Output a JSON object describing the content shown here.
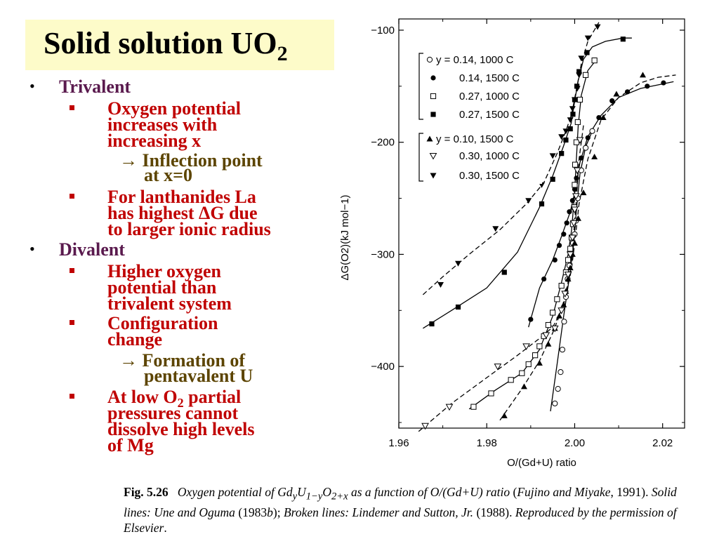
{
  "slide": {
    "title": "Solid solution UO",
    "title_sub": "2"
  },
  "bullets": {
    "trivalent": "Trivalent",
    "oxy_1": "Oxygen potential",
    "oxy_2": "increases with",
    "oxy_3": "increasing x",
    "arrow_glyph": "→",
    "inflection_1": "Inflection point",
    "inflection_2": "at x=0",
    "lan_1": "For lanthanides La",
    "lan_2": "has highest  ΔG due",
    "lan_3": "to larger ionic radius",
    "divalent": "Divalent",
    "higher_1": "Higher oxygen",
    "higher_2": "potential than",
    "higher_3": "trivalent system",
    "config_1": "Configuration",
    "config_2": "change",
    "penta_1": "Formation of",
    "penta_2": "pentavalent U",
    "low_1": "At low O",
    "low_1_sub": "2",
    "low_1_end": " partial",
    "low_2": "pressures cannot",
    "low_3": "dissolve high levels",
    "low_4": "of Mg"
  },
  "chart_data": {
    "type": "scatter",
    "xlabel": "O/(Gd+U) ratio",
    "ylabel": "ΔG(O2)(kJ mol−1)",
    "xlim": [
      1.96,
      2.025
    ],
    "ylim": [
      -455,
      -90
    ],
    "xticks": [
      1.96,
      1.98,
      2.0,
      2.02
    ],
    "xtick_labels": [
      "1.96",
      "1.98",
      "2.00",
      "2.02"
    ],
    "yticks": [
      -100,
      -200,
      -300,
      -400
    ],
    "ytick_labels": [
      "−100",
      "−200",
      "−300",
      "−400"
    ],
    "legend_position": "top-left",
    "legend": [
      "y = 0.14, 1000 C",
      "0.14, 1500 C",
      "0.27, 1000 C",
      "0.27, 1500 C",
      "y = 0.10, 1500 C",
      "0.30, 1000 C",
      "0.30, 1500 C"
    ],
    "series": [
      {
        "marker": "circle-open",
        "x": [
          1.9955,
          1.9962,
          1.9968,
          1.9972,
          1.9976,
          1.998,
          1.9984,
          1.9988,
          1.9992,
          1.9996,
          2.0,
          2.0003,
          2.0007,
          2.0015,
          2.0025,
          2.004
        ],
        "y": [
          -433,
          -420,
          -405,
          -385,
          -360,
          -338,
          -322,
          -310,
          -300,
          -290,
          -282,
          -270,
          -250,
          -225,
          -205,
          -190
        ]
      },
      {
        "marker": "circle-filled",
        "x": [
          1.99,
          1.993,
          1.9955,
          1.9965,
          1.9975,
          1.9982,
          1.9988,
          1.9995,
          2.0,
          2.0004,
          2.0015,
          2.003,
          2.0055,
          2.0085,
          2.012,
          2.0165,
          2.0202
        ],
        "y": [
          -358,
          -322,
          -305,
          -292,
          -282,
          -272,
          -262,
          -252,
          -242,
          -232,
          -214,
          -196,
          -178,
          -163,
          -155,
          -150,
          -147
        ]
      },
      {
        "marker": "square-open",
        "x": [
          1.977,
          1.981,
          1.9855,
          1.988,
          1.9895,
          1.991,
          1.992,
          1.993,
          1.994,
          1.995,
          1.996,
          1.997,
          1.998,
          1.9985,
          1.999,
          1.9993,
          1.9996,
          1.9999,
          2.0,
          2.0001,
          2.0004,
          2.0007,
          2.0012,
          2.0025,
          2.0045
        ],
        "y": [
          -436,
          -424,
          -412,
          -406,
          -398,
          -390,
          -382,
          -373,
          -363,
          -352,
          -340,
          -328,
          -316,
          -305,
          -295,
          -285,
          -273,
          -258,
          -238,
          -220,
          -200,
          -182,
          -162,
          -140,
          -127
        ]
      },
      {
        "marker": "square-filled",
        "x": [
          1.9675,
          1.9735,
          1.984,
          1.9925,
          1.995,
          1.997,
          1.998,
          1.999,
          1.9996,
          2.0,
          2.0005,
          2.001,
          2.0028,
          2.011
        ],
        "y": [
          -362,
          -347,
          -316,
          -255,
          -233,
          -210,
          -198,
          -188,
          -175,
          -162,
          -150,
          -137,
          -120,
          -108
        ]
      },
      {
        "marker": "triangle-filled",
        "x": [
          1.984,
          1.9885,
          1.992,
          1.994,
          1.9955,
          1.9965,
          1.9975,
          1.998,
          1.9985,
          1.999,
          1.9995,
          2.0,
          2.0008,
          2.002,
          2.0045,
          2.0065,
          2.0095,
          2.0155
        ],
        "y": [
          -444,
          -418,
          -397,
          -380,
          -366,
          -355,
          -345,
          -333,
          -322,
          -312,
          -300,
          -290,
          -268,
          -245,
          -213,
          -178,
          -157,
          -140
        ]
      },
      {
        "marker": "triangle-open",
        "x": [
          1.966,
          1.9715,
          1.9825,
          1.989,
          1.9935,
          1.9955,
          1.997,
          1.9978,
          1.9985,
          1.999,
          1.9995,
          1.9998,
          2.0,
          2.0003,
          2.0006,
          2.0012
        ],
        "y": [
          -453,
          -436,
          -400,
          -382,
          -372,
          -366,
          -350,
          -335,
          -318,
          -300,
          -285,
          -272,
          -260,
          -248,
          -225,
          -198
        ]
      },
      {
        "marker": "triangle-down-filled",
        "x": [
          1.9695,
          1.9735,
          1.982,
          1.9895,
          1.9925,
          1.995,
          1.997,
          1.998,
          1.999,
          1.9995,
          2.0,
          2.0006,
          2.001,
          2.0015,
          2.003,
          2.0052
        ],
        "y": [
          -327,
          -308,
          -277,
          -252,
          -238,
          -212,
          -195,
          -190,
          -180,
          -170,
          -162,
          -152,
          -140,
          -125,
          -107,
          -97
        ]
      }
    ],
    "curves": [
      {
        "style": "solid",
        "x": [
          1.9945,
          1.996,
          1.9975,
          1.999,
          1.9998,
          2.0003,
          2.0012,
          2.0025,
          2.004
        ],
        "y": [
          -440,
          -398,
          -355,
          -315,
          -290,
          -265,
          -228,
          -204,
          -190
        ]
      },
      {
        "style": "solid",
        "x": [
          1.9895,
          1.992,
          1.995,
          1.997,
          1.999,
          2.0,
          2.0012,
          2.003,
          2.006,
          2.01,
          2.015,
          2.02,
          2.0225
        ],
        "y": [
          -365,
          -330,
          -305,
          -284,
          -262,
          -245,
          -218,
          -195,
          -176,
          -160,
          -152,
          -148,
          -146
        ]
      },
      {
        "style": "solid",
        "x": [
          1.976,
          1.982,
          1.988,
          1.992,
          1.995,
          1.997,
          1.9985,
          1.9993,
          1.9999,
          2.0003,
          2.0008,
          2.0015,
          2.003,
          2.005
        ],
        "y": [
          -438,
          -421,
          -406,
          -385,
          -355,
          -325,
          -300,
          -278,
          -250,
          -222,
          -185,
          -158,
          -136,
          -126
        ]
      },
      {
        "style": "solid",
        "x": [
          1.9655,
          1.972,
          1.98,
          1.987,
          1.992,
          1.995,
          1.9975,
          1.9992,
          2.0,
          2.0008,
          2.002,
          2.004,
          2.007,
          2.011,
          2.013
        ],
        "y": [
          -366,
          -350,
          -330,
          -298,
          -258,
          -230,
          -203,
          -183,
          -163,
          -145,
          -126,
          -115,
          -110,
          -107,
          -107
        ]
      },
      {
        "style": "dashed",
        "x": [
          1.983,
          1.988,
          1.992,
          1.995,
          1.9975,
          1.9992,
          2.0,
          2.001,
          2.003,
          2.006,
          2.01,
          2.015,
          2.019,
          2.023
        ],
        "y": [
          -448,
          -420,
          -395,
          -370,
          -345,
          -315,
          -290,
          -255,
          -215,
          -180,
          -160,
          -147,
          -142,
          -140
        ]
      },
      {
        "style": "dashed",
        "x": [
          1.9645,
          1.972,
          1.98,
          1.987,
          1.992,
          1.995,
          1.997,
          1.9985,
          1.9995,
          2.0,
          2.0005,
          2.001,
          2.002
        ],
        "y": [
          -458,
          -433,
          -410,
          -390,
          -375,
          -365,
          -350,
          -325,
          -295,
          -270,
          -245,
          -215,
          -185
        ]
      },
      {
        "style": "dashed",
        "x": [
          1.9655,
          1.97,
          1.976,
          1.983,
          1.989,
          1.993,
          1.996,
          1.998,
          1.9993,
          2.0003,
          2.0015,
          2.003,
          2.0055
        ],
        "y": [
          -336,
          -320,
          -300,
          -278,
          -255,
          -236,
          -210,
          -190,
          -175,
          -155,
          -130,
          -110,
          -93
        ]
      }
    ]
  },
  "caption": {
    "fig_label": "Fig. 5.26",
    "text_1": "Oxygen potential of Gd",
    "sub_y": "y",
    "text_2": "U",
    "sub_1y": "1−y",
    "text_3": "O",
    "sub_2x": "2+x",
    "text_4": " as a function of O/(Gd+U) ratio ",
    "paren_open": "(",
    "ref_1": "Fujino and Miyake",
    "ref_1_year": ", 1991).",
    "text_5": " Solid lines: Une and Oguma ",
    "ref_2_year": "(1983",
    "ref_2_b": "b",
    "ref_2_end": ");",
    "text_6": " Broken lines: Lindemer and Sutton, Jr. ",
    "ref_3_year": "(1988).",
    "text_7": " Reproduced by the permission of Elsevier",
    "period": "."
  }
}
